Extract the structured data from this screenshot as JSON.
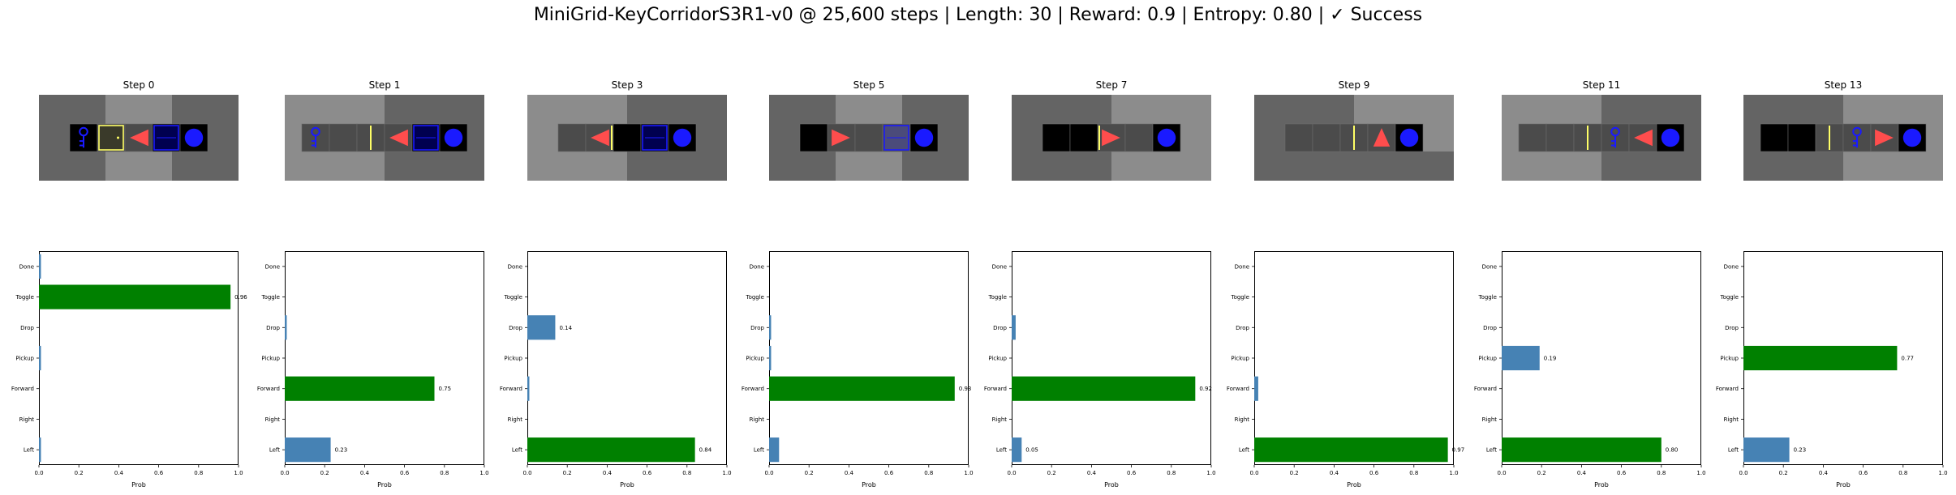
{
  "suptitle": "MiniGrid-KeyCorridorS3R1-v0 @ 25,600 steps | Length: 30 | Reward: 0.9 | Entropy: 0.80 | ✓ Success",
  "colors": {
    "chosen_bar": "#008000",
    "other_bar": "#4682b4",
    "floor_dark": "#646464",
    "floor_light": "#8c8c8c",
    "cell": "#4b4b4b",
    "wall_black": "#000000",
    "door_yellow": "#ffff66",
    "blue_obj": "#1a1aff",
    "agent_red": "#ff4d4d"
  },
  "chart_data": [
    {
      "type": "bar",
      "orientation": "horizontal",
      "title": "Step 0",
      "xlabel": "Prob",
      "categories": [
        "Left",
        "Right",
        "Forward",
        "Pickup",
        "Drop",
        "Toggle",
        "Done"
      ],
      "values": [
        0.01,
        0.0,
        0.0,
        0.01,
        0.0,
        0.96,
        0.01
      ],
      "chosen": "Toggle",
      "label": "0.96",
      "xlim": [
        0,
        1
      ],
      "xticks": [
        "0.0",
        "0.2",
        "0.4",
        "0.6",
        "0.8",
        "1.0"
      ]
    },
    {
      "type": "bar",
      "orientation": "horizontal",
      "title": "Step 1",
      "xlabel": "Prob",
      "categories": [
        "Left",
        "Right",
        "Forward",
        "Pickup",
        "Drop",
        "Toggle",
        "Done"
      ],
      "values": [
        0.23,
        0.0,
        0.75,
        0.0,
        0.01,
        0.0,
        0.0
      ],
      "chosen": "Forward",
      "labels": {
        "Left": "0.23",
        "Forward": "0.75"
      },
      "xlim": [
        0,
        1
      ],
      "xticks": [
        "0.0",
        "0.2",
        "0.4",
        "0.6",
        "0.8",
        "1.0"
      ]
    },
    {
      "type": "bar",
      "orientation": "horizontal",
      "title": "Step 3",
      "xlabel": "Prob",
      "categories": [
        "Left",
        "Right",
        "Forward",
        "Pickup",
        "Drop",
        "Toggle",
        "Done"
      ],
      "values": [
        0.84,
        0.0,
        0.01,
        0.0,
        0.14,
        0.0,
        0.0
      ],
      "chosen": "Left",
      "labels": {
        "Left": "0.84",
        "Drop": "0.14"
      },
      "xlim": [
        0,
        1
      ],
      "xticks": [
        "0.0",
        "0.2",
        "0.4",
        "0.6",
        "0.8",
        "1.0"
      ]
    },
    {
      "type": "bar",
      "orientation": "horizontal",
      "title": "Step 5",
      "xlabel": "Prob",
      "categories": [
        "Left",
        "Right",
        "Forward",
        "Pickup",
        "Drop",
        "Toggle",
        "Done"
      ],
      "values": [
        0.05,
        0.0,
        0.93,
        0.01,
        0.01,
        0.0,
        0.0
      ],
      "chosen": "Forward",
      "labels": {
        "Forward": "0.93"
      },
      "xlim": [
        0,
        1
      ],
      "xticks": [
        "0.0",
        "0.2",
        "0.4",
        "0.6",
        "0.8",
        "1.0"
      ]
    },
    {
      "type": "bar",
      "orientation": "horizontal",
      "title": "Step 7",
      "xlabel": "Prob",
      "categories": [
        "Left",
        "Right",
        "Forward",
        "Pickup",
        "Drop",
        "Toggle",
        "Done"
      ],
      "values": [
        0.05,
        0.0,
        0.92,
        0.0,
        0.02,
        0.0,
        0.0
      ],
      "chosen": "Forward",
      "labels": {
        "Left": "0.05",
        "Forward": "0.92"
      },
      "xlim": [
        0,
        1
      ],
      "xticks": [
        "0.0",
        "0.2",
        "0.4",
        "0.6",
        "0.8",
        "1.0"
      ]
    },
    {
      "type": "bar",
      "orientation": "horizontal",
      "title": "Step 9",
      "xlabel": "Prob",
      "categories": [
        "Left",
        "Right",
        "Forward",
        "Pickup",
        "Drop",
        "Toggle",
        "Done"
      ],
      "values": [
        0.97,
        0.0,
        0.02,
        0.0,
        0.0,
        0.0,
        0.0
      ],
      "chosen": "Left",
      "labels": {
        "Left": "0.97"
      },
      "xlim": [
        0,
        1
      ],
      "xticks": [
        "0.0",
        "0.2",
        "0.4",
        "0.6",
        "0.8",
        "1.0"
      ]
    },
    {
      "type": "bar",
      "orientation": "horizontal",
      "title": "Step 11",
      "xlabel": "Prob",
      "categories": [
        "Left",
        "Right",
        "Forward",
        "Pickup",
        "Drop",
        "Toggle",
        "Done"
      ],
      "values": [
        0.8,
        0.0,
        0.0,
        0.19,
        0.0,
        0.0,
        0.0
      ],
      "chosen": "Left",
      "labels": {
        "Left": "0.80",
        "Pickup": "0.19"
      },
      "xlim": [
        0,
        1
      ],
      "xticks": [
        "0.0",
        "0.2",
        "0.4",
        "0.6",
        "0.8",
        "1.0"
      ]
    },
    {
      "type": "bar",
      "orientation": "horizontal",
      "title": "Step 13",
      "xlabel": "Prob",
      "categories": [
        "Left",
        "Right",
        "Forward",
        "Pickup",
        "Drop",
        "Toggle",
        "Done"
      ],
      "values": [
        0.23,
        0.0,
        0.0,
        0.77,
        0.0,
        0.0,
        0.0
      ],
      "chosen": "Pickup",
      "labels": {
        "Left": "0.23",
        "Pickup": "0.77"
      },
      "xlim": [
        0,
        1
      ],
      "xticks": [
        "0.0",
        "0.2",
        "0.4",
        "0.6",
        "0.8",
        "1.0"
      ]
    }
  ],
  "frames": [
    {
      "title": "Step 0",
      "bg": [
        "dark",
        "light",
        "dark"
      ],
      "cells": [
        "key-closed-door-a",
        "door-outline-yellow",
        "agent-left",
        "blue-door",
        "blue-ball"
      ]
    },
    {
      "title": "Step 1",
      "bg": [
        "light",
        "dark"
      ],
      "cells": [
        "key-cell",
        "grey",
        "yellow-line",
        "agent-left",
        "blue-door",
        "blue-ball"
      ]
    },
    {
      "title": "Step 3",
      "bg": [
        "light",
        "dark"
      ],
      "cells": [
        "grey",
        "agent-left-yellow",
        "black",
        "blue-door",
        "blue-ball"
      ]
    },
    {
      "title": "Step 5",
      "bg": [
        "dark",
        "light",
        "dark"
      ],
      "cells": [
        "black",
        "agent-right",
        "grey",
        "blue-door-light",
        "blue-ball"
      ]
    },
    {
      "title": "Step 7",
      "bg": [
        "dark",
        "light"
      ],
      "cells": [
        "black",
        "black",
        "agent-right-yellow",
        "grey",
        "blue-ball"
      ]
    },
    {
      "title": "Step 9",
      "bg": [
        "dark",
        "light"
      ],
      "cells": [
        "grey",
        "grey",
        "yellow-line",
        "agent-up",
        "blue-ball"
      ]
    },
    {
      "title": "Step 11",
      "bg": [
        "light",
        "dark"
      ],
      "cells": [
        "grey",
        "grey",
        "yellow-line",
        "key-cell",
        "agent-left",
        "blue-ball"
      ]
    },
    {
      "title": "Step 13",
      "bg": [
        "dark",
        "light"
      ],
      "cells": [
        "black",
        "black",
        "yellow-line",
        "key-cell",
        "agent-right",
        "blue-ball"
      ]
    }
  ]
}
